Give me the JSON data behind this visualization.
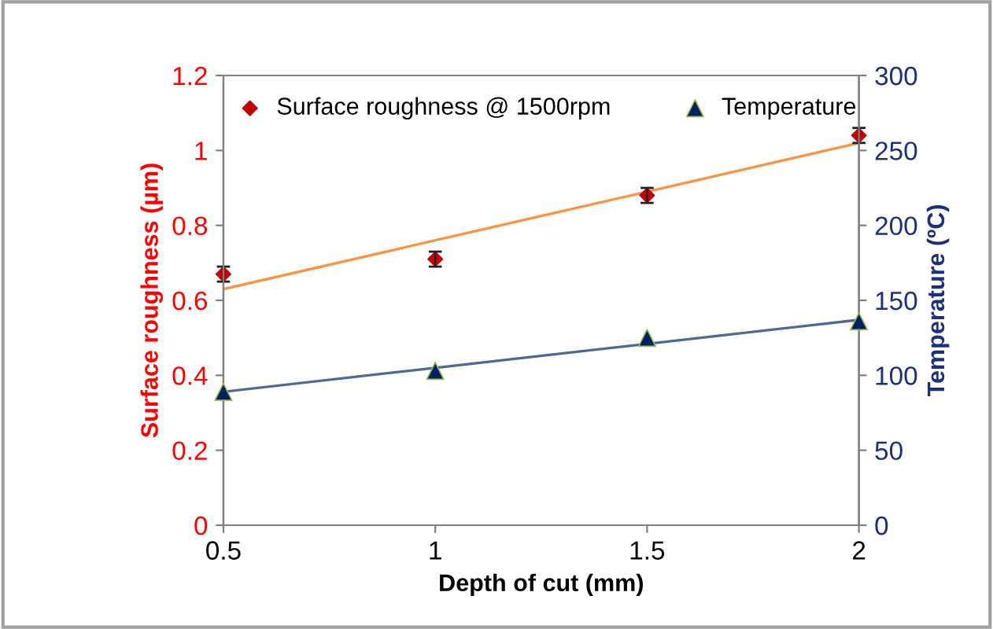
{
  "chart_data": {
    "type": "scatter",
    "xlabel": "Depth of cut (mm)",
    "ylabel": "Surface roughness (µm)",
    "y2label": "Temperature (ºC)",
    "x": [
      0.5,
      1,
      1.5,
      2
    ],
    "series": [
      {
        "name": "Surface roughness @ 1500rpm",
        "marker": "diamond",
        "color": "#c00000",
        "values": [
          0.67,
          0.71,
          0.88,
          1.04
        ],
        "errors": [
          0.02,
          0.02,
          0.02,
          0.02
        ]
      },
      {
        "name": "Temperature",
        "marker": "triangle",
        "axis": "y2",
        "color": "#002060",
        "values": [
          89,
          103,
          125,
          136
        ]
      },
      {
        "type": "line",
        "marker": "none",
        "color": "#f79646",
        "values": [
          0.63,
          0.76,
          0.89,
          1.02
        ]
      },
      {
        "type": "line",
        "marker": "none",
        "axis": "y2",
        "color": "#4f6a8f",
        "values": [
          89,
          105,
          121,
          137
        ]
      }
    ],
    "xlim": [
      0.5,
      2
    ],
    "xticks": [
      0.5,
      1,
      1.5,
      2
    ],
    "ylim": [
      0,
      1.2
    ],
    "yticks": [
      0,
      0.2,
      0.4,
      0.6,
      0.8,
      1,
      1.2
    ],
    "y2lim": [
      0,
      300
    ],
    "y2ticks": [
      0,
      50,
      100,
      150,
      200,
      250,
      300
    ],
    "grid": false,
    "legend": "top"
  }
}
